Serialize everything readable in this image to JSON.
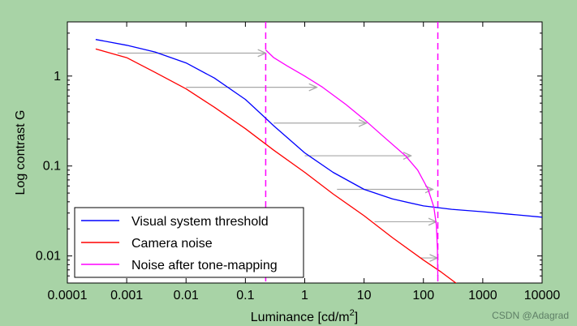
{
  "chart_data": {
    "type": "line",
    "xlabel": "Luminance [cd/m²]",
    "xlabel_parts": {
      "base": "Luminance [cd/m",
      "sup": "2",
      "tail": "]"
    },
    "ylabel": "Log contrast G",
    "x_scale": "log",
    "y_scale": "log",
    "xlim": [
      0.0001,
      10000
    ],
    "ylim": [
      0.005,
      4
    ],
    "x_ticks": [
      0.0001,
      0.001,
      0.01,
      0.1,
      1,
      10,
      100,
      1000,
      10000
    ],
    "x_tick_labels": [
      "0.0001",
      "0.001",
      "0.01",
      "0.1",
      "1",
      "10",
      "100",
      "1000",
      "10000"
    ],
    "y_ticks": [
      0.01,
      0.1,
      1
    ],
    "y_tick_labels": [
      "0.01",
      "0.1",
      "1"
    ],
    "grid": false,
    "legend_position": "bottom-left",
    "series": [
      {
        "name": "Visual system threshold",
        "color": "#0000ff",
        "points": [
          [
            0.0003,
            2.55
          ],
          [
            0.001,
            2.2
          ],
          [
            0.003,
            1.85
          ],
          [
            0.01,
            1.4
          ],
          [
            0.03,
            0.95
          ],
          [
            0.1,
            0.55
          ],
          [
            0.2,
            0.36
          ],
          [
            0.3,
            0.28
          ],
          [
            1,
            0.14
          ],
          [
            3,
            0.085
          ],
          [
            10,
            0.055
          ],
          [
            30,
            0.043
          ],
          [
            100,
            0.036
          ],
          [
            300,
            0.033
          ],
          [
            1000,
            0.031
          ],
          [
            3000,
            0.029
          ],
          [
            10000,
            0.027
          ]
        ]
      },
      {
        "name": "Camera noise",
        "color": "#ff0000",
        "points": [
          [
            0.0003,
            2.0
          ],
          [
            0.001,
            1.6
          ],
          [
            0.003,
            1.1
          ],
          [
            0.01,
            0.72
          ],
          [
            0.03,
            0.45
          ],
          [
            0.1,
            0.26
          ],
          [
            0.3,
            0.15
          ],
          [
            1,
            0.085
          ],
          [
            3,
            0.049
          ],
          [
            10,
            0.028
          ],
          [
            30,
            0.016
          ],
          [
            100,
            0.009
          ],
          [
            200,
            0.0066
          ],
          [
            400,
            0.0047
          ]
        ]
      },
      {
        "name": "Noise after tone-mapping",
        "color": "#ff00ff",
        "points": [
          [
            0.22,
            1.95
          ],
          [
            0.3,
            1.6
          ],
          [
            0.5,
            1.3
          ],
          [
            1,
            1.0
          ],
          [
            2,
            0.75
          ],
          [
            5,
            0.48
          ],
          [
            10,
            0.33
          ],
          [
            20,
            0.22
          ],
          [
            50,
            0.13
          ],
          [
            80,
            0.09
          ],
          [
            120,
            0.055
          ],
          [
            150,
            0.035
          ],
          [
            165,
            0.022
          ],
          [
            172,
            0.012
          ],
          [
            175,
            0.006
          ]
        ]
      }
    ],
    "vlines": [
      {
        "x": 0.22,
        "color": "#ff00ff",
        "style": "dashed"
      },
      {
        "x": 175,
        "color": "#ff00ff",
        "style": "dashed"
      }
    ],
    "arrows": [
      {
        "x1": 0.0007,
        "x2": 0.22,
        "y": 1.8
      },
      {
        "x1": 0.01,
        "x2": 1.6,
        "y": 0.75
      },
      {
        "x1": 0.3,
        "x2": 11,
        "y": 0.3
      },
      {
        "x1": 1,
        "x2": 62,
        "y": 0.13
      },
      {
        "x1": 3.5,
        "x2": 145,
        "y": 0.055
      },
      {
        "x1": 15,
        "x2": 165,
        "y": 0.024
      },
      {
        "x1": 90,
        "x2": 172,
        "y": 0.0095
      }
    ]
  },
  "watermark": "CSDN @Adagrad"
}
